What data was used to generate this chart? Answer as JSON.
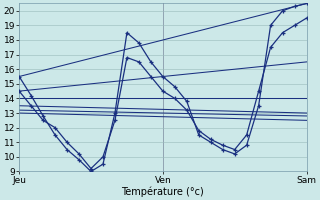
{
  "xlabel": "Température (°c)",
  "xlim": [
    0,
    48
  ],
  "ylim": [
    9,
    20.5
  ],
  "yticks": [
    9,
    10,
    11,
    12,
    13,
    14,
    15,
    16,
    17,
    18,
    19,
    20
  ],
  "xtick_positions": [
    0,
    24,
    48
  ],
  "xtick_labels": [
    "Jeu",
    "Ven",
    "Sam"
  ],
  "background_color": "#cce8e8",
  "grid_color": "#99bbbb",
  "line_color": "#1a3080",
  "vline_color": "#8888aa",
  "curve1_x": [
    0,
    2,
    4,
    6,
    8,
    10,
    12,
    14,
    16,
    18,
    20,
    22,
    24,
    26,
    28,
    30,
    32,
    34,
    36,
    38,
    40,
    42,
    44,
    46,
    48
  ],
  "curve1_y": [
    15.5,
    14.2,
    12.8,
    11.5,
    10.5,
    9.8,
    9.0,
    9.5,
    13.0,
    18.5,
    17.8,
    16.5,
    15.5,
    14.8,
    13.8,
    11.5,
    11.0,
    10.5,
    10.2,
    10.8,
    13.5,
    19.0,
    20.0,
    20.3,
    20.5
  ],
  "curve2_x": [
    0,
    2,
    4,
    6,
    8,
    10,
    12,
    14,
    16,
    18,
    20,
    22,
    24,
    26,
    28,
    30,
    32,
    34,
    36,
    38,
    40,
    42,
    44,
    46,
    48
  ],
  "curve2_y": [
    14.5,
    13.5,
    12.5,
    12.0,
    11.0,
    10.2,
    9.2,
    10.0,
    12.5,
    16.8,
    16.5,
    15.5,
    14.5,
    14.0,
    13.2,
    11.8,
    11.2,
    10.8,
    10.5,
    11.5,
    14.5,
    17.5,
    18.5,
    19.0,
    19.5
  ],
  "diag_lines": [
    {
      "x": [
        0,
        48
      ],
      "y": [
        15.5,
        20.5
      ]
    },
    {
      "x": [
        0,
        48
      ],
      "y": [
        14.5,
        16.5
      ]
    },
    {
      "x": [
        0,
        48
      ],
      "y": [
        14.0,
        14.0
      ]
    },
    {
      "x": [
        0,
        48
      ],
      "y": [
        13.5,
        13.0
      ]
    },
    {
      "x": [
        0,
        48
      ],
      "y": [
        13.2,
        12.8
      ]
    },
    {
      "x": [
        0,
        48
      ],
      "y": [
        13.0,
        12.5
      ]
    }
  ],
  "marker_x1": [
    0,
    4,
    8,
    12,
    16,
    18,
    20,
    22,
    24,
    28,
    32,
    36,
    40,
    44,
    48
  ],
  "marker_y1": [
    15.5,
    12.8,
    10.5,
    9.0,
    13.0,
    18.5,
    17.8,
    16.5,
    15.5,
    13.8,
    11.0,
    10.2,
    13.5,
    20.0,
    20.5
  ],
  "marker_x2": [
    0,
    4,
    8,
    12,
    16,
    18,
    20,
    22,
    24,
    28,
    32,
    36,
    40,
    44,
    48
  ],
  "marker_y2": [
    14.5,
    12.5,
    11.0,
    9.2,
    12.5,
    16.8,
    16.5,
    15.5,
    14.5,
    13.2,
    11.2,
    10.5,
    14.5,
    18.5,
    19.5
  ]
}
